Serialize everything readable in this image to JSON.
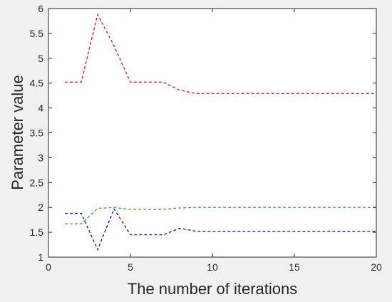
{
  "chart_data": {
    "type": "line",
    "title": "",
    "xlabel": "The number of iterations",
    "ylabel": "Parameter value",
    "xlim": [
      0,
      20
    ],
    "ylim": [
      1,
      6
    ],
    "xticks": [
      0,
      5,
      10,
      15,
      20
    ],
    "yticks": [
      1,
      1.5,
      2,
      2.5,
      3,
      3.5,
      4,
      4.5,
      5,
      5.5,
      6
    ],
    "grid": false,
    "legend": "none",
    "line_style": "dashed",
    "x": [
      1,
      2,
      3,
      4,
      5,
      6,
      7,
      8,
      9,
      10,
      11,
      12,
      13,
      14,
      15,
      16,
      17,
      18,
      19,
      20
    ],
    "series": [
      {
        "color": "#e0202a",
        "values": [
          4.52,
          4.52,
          5.88,
          5.25,
          4.52,
          4.52,
          4.52,
          4.36,
          4.29,
          4.29,
          4.29,
          4.29,
          4.29,
          4.29,
          4.29,
          4.29,
          4.29,
          4.29,
          4.29,
          4.29
        ]
      },
      {
        "color": "#3cb82a",
        "values": [
          1.67,
          1.67,
          1.98,
          2.0,
          1.96,
          1.96,
          1.96,
          1.99,
          2.0,
          2.0,
          2.0,
          2.0,
          2.0,
          2.0,
          2.0,
          2.0,
          2.0,
          2.0,
          2.0,
          2.0
        ]
      },
      {
        "color": "#1f1fb4",
        "values": [
          1.88,
          1.88,
          1.15,
          1.97,
          1.45,
          1.45,
          1.45,
          1.58,
          1.52,
          1.52,
          1.52,
          1.52,
          1.52,
          1.52,
          1.52,
          1.52,
          1.52,
          1.52,
          1.52,
          1.52
        ]
      }
    ]
  }
}
